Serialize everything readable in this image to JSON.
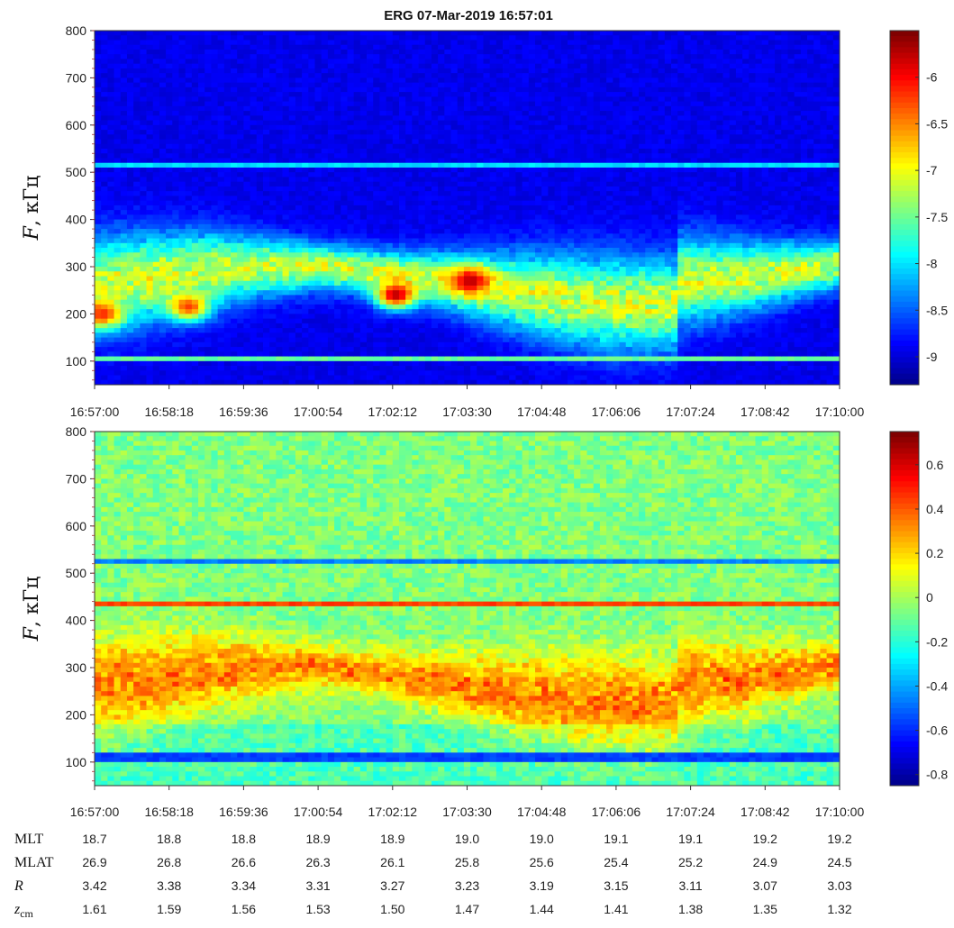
{
  "chart_data": [
    {
      "type": "heatmap",
      "title": "ERG  07-Mar-2019 16:57:01",
      "ylabel_italic": "F",
      "ylabel_rest": ", кГц",
      "xlim": [
        "16:57:00",
        "17:10:00"
      ],
      "ylim": [
        50,
        800
      ],
      "x_ticks": [
        "16:57:00",
        "16:58:18",
        "16:59:36",
        "17:00:54",
        "17:02:12",
        "17:03:30",
        "17:04:48",
        "17:06:06",
        "17:07:24",
        "17:08:42",
        "17:10:00"
      ],
      "y_ticks": [
        "100",
        "200",
        "300",
        "400",
        "500",
        "600",
        "700",
        "800"
      ],
      "colorbar": {
        "min": -9.3,
        "max": -5.5,
        "ticks": [
          "-6",
          "-6.5",
          "-7",
          "-7.5",
          "-8",
          "-8.5",
          "-9"
        ]
      },
      "colormap": "jet",
      "features": [
        {
          "kind": "band",
          "label": "main emission band 180–380 кГц",
          "level": -7.3
        },
        {
          "kind": "line",
          "freq": 512,
          "level": -8.0
        },
        {
          "kind": "line",
          "freq": 108,
          "level": -7.5
        },
        {
          "kind": "hotspot",
          "time": "16:57:05",
          "freq": 200,
          "level": -6.1
        },
        {
          "kind": "hotspot",
          "time": "16:58:35",
          "freq": 215,
          "level": -6.2
        },
        {
          "kind": "hotspot",
          "time": "17:02:12",
          "freq": 240,
          "level": -5.7
        },
        {
          "kind": "hotspot",
          "time": "17:03:30",
          "freq": 270,
          "level": -5.7
        }
      ]
    },
    {
      "type": "heatmap",
      "title": "",
      "ylabel_italic": "F",
      "ylabel_rest": ", кГц",
      "xlim": [
        "16:57:00",
        "17:10:00"
      ],
      "ylim": [
        50,
        800
      ],
      "x_ticks": [
        "16:57:00",
        "16:58:18",
        "16:59:36",
        "17:00:54",
        "17:02:12",
        "17:03:30",
        "17:04:48",
        "17:06:06",
        "17:07:24",
        "17:08:42",
        "17:10:00"
      ],
      "y_ticks": [
        "100",
        "200",
        "300",
        "400",
        "500",
        "600",
        "700",
        "800"
      ],
      "colorbar": {
        "min": -0.85,
        "max": 0.75,
        "ticks": [
          "0.6",
          "0.4",
          "0.2",
          "0",
          "-0.2",
          "-0.4",
          "-0.6",
          "-0.8"
        ]
      },
      "colormap": "jet",
      "features": [
        {
          "kind": "band",
          "label": "elevated band 200–380 кГц",
          "level": 0.3
        },
        {
          "kind": "line",
          "freq": 522,
          "level": -0.45
        },
        {
          "kind": "line",
          "freq": 435,
          "level": 0.45
        },
        {
          "kind": "line",
          "freq": 110,
          "level": -0.55
        }
      ]
    }
  ],
  "ephemeris": {
    "rows": [
      {
        "label": "MLT",
        "sub": "",
        "italic": false,
        "values": [
          "18.7",
          "18.8",
          "18.8",
          "18.9",
          "18.9",
          "19.0",
          "19.0",
          "19.1",
          "19.1",
          "19.2",
          "19.2"
        ]
      },
      {
        "label": "MLAT",
        "sub": "",
        "italic": false,
        "values": [
          "26.9",
          "26.8",
          "26.6",
          "26.3",
          "26.1",
          "25.8",
          "25.6",
          "25.4",
          "25.2",
          "24.9",
          "24.5"
        ]
      },
      {
        "label": "R",
        "sub": "",
        "italic": true,
        "values": [
          "3.42",
          "3.38",
          "3.34",
          "3.31",
          "3.27",
          "3.23",
          "3.19",
          "3.15",
          "3.11",
          "3.07",
          "3.03"
        ]
      },
      {
        "label": "z",
        "sub": "cm",
        "italic": true,
        "values": [
          "1.61",
          "1.59",
          "1.56",
          "1.53",
          "1.50",
          "1.47",
          "1.44",
          "1.41",
          "1.38",
          "1.35",
          "1.32"
        ]
      }
    ]
  }
}
